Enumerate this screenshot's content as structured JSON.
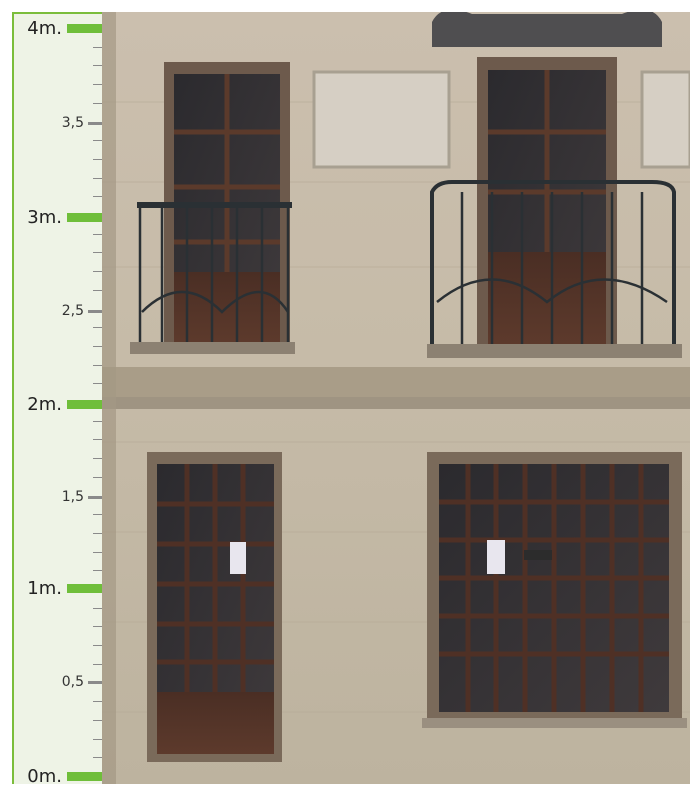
{
  "ruler": {
    "labels": {
      "m4": "4m.",
      "m3_5": "3,5",
      "m3": "3m.",
      "m2_5": "2,5",
      "m2": "2m.",
      "m1_5": "1,5",
      "m1": "1m.",
      "m0_5": "0,5",
      "m0": "0m."
    },
    "accent_color": "#6fbe3a"
  }
}
